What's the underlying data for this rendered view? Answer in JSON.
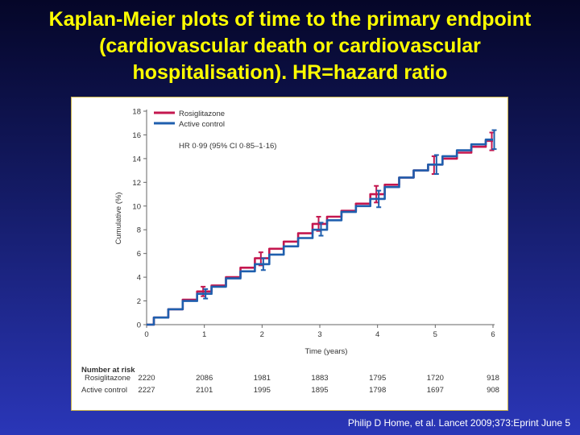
{
  "slide": {
    "title_lines": [
      "Kaplan-Meier plots of time to the primary endpoint",
      "(cardiovascular death or cardiovascular",
      "hospitalisation). HR=hazard ratio"
    ],
    "citation": "Philip D Home, et al. Lancet 2009;373:Eprint June 5"
  },
  "colors": {
    "rosiglitazone": "#c4174f",
    "active_control": "#1f5fae",
    "title": "#ffff00"
  },
  "chart_data": {
    "type": "line",
    "xlabel": "Time (years)",
    "ylabel": "Cumulative (%)",
    "xlim": [
      0,
      6
    ],
    "ylim": [
      0,
      18
    ],
    "x_ticks": [
      0,
      1,
      2,
      3,
      4,
      5,
      6
    ],
    "y_ticks": [
      0,
      2,
      4,
      6,
      8,
      10,
      12,
      14,
      16,
      18
    ],
    "annotation": "HR 0·99 (95% CI 0·85–1·16)",
    "legend_position": "top-left",
    "series": [
      {
        "name": "Rosiglitazone",
        "color": "#c4174f",
        "x": [
          0,
          0.25,
          0.5,
          0.75,
          1,
          1.25,
          1.5,
          1.75,
          2,
          2.25,
          2.5,
          2.75,
          3,
          3.25,
          3.5,
          3.75,
          4,
          4.25,
          4.5,
          4.75,
          5,
          5.25,
          5.5,
          5.75,
          6
        ],
        "y": [
          0,
          0.6,
          1.3,
          2.1,
          2.8,
          3.3,
          4.0,
          4.8,
          5.6,
          6.4,
          7.0,
          7.7,
          8.5,
          9.1,
          9.6,
          10.2,
          11.0,
          11.8,
          12.4,
          13.0,
          13.5,
          14.0,
          14.5,
          15.0,
          15.5
        ],
        "error_bars": [
          {
            "x": 1,
            "low": 2.4,
            "high": 3.2
          },
          {
            "x": 2,
            "low": 5.0,
            "high": 6.1
          },
          {
            "x": 3,
            "low": 7.9,
            "high": 9.1
          },
          {
            "x": 4,
            "low": 10.3,
            "high": 11.7
          },
          {
            "x": 5,
            "low": 12.7,
            "high": 14.2
          },
          {
            "x": 6,
            "low": 14.7,
            "high": 16.2
          }
        ]
      },
      {
        "name": "Active control",
        "color": "#1f5fae",
        "x": [
          0,
          0.25,
          0.5,
          0.75,
          1,
          1.25,
          1.5,
          1.75,
          2,
          2.25,
          2.5,
          2.75,
          3,
          3.25,
          3.5,
          3.75,
          4,
          4.25,
          4.5,
          4.75,
          5,
          5.25,
          5.5,
          5.75,
          6
        ],
        "y": [
          0,
          0.6,
          1.3,
          2.0,
          2.6,
          3.2,
          3.9,
          4.5,
          5.1,
          5.9,
          6.6,
          7.3,
          8.0,
          8.8,
          9.5,
          10.0,
          10.6,
          11.6,
          12.4,
          13.0,
          13.5,
          14.2,
          14.7,
          15.2,
          15.6
        ],
        "error_bars": [
          {
            "x": 1,
            "low": 2.2,
            "high": 3.0
          },
          {
            "x": 2,
            "low": 4.6,
            "high": 5.6
          },
          {
            "x": 3,
            "low": 7.5,
            "high": 8.6
          },
          {
            "x": 4,
            "low": 9.9,
            "high": 11.3
          },
          {
            "x": 5,
            "low": 12.7,
            "high": 14.3
          },
          {
            "x": 6,
            "low": 14.8,
            "high": 16.4
          }
        ]
      }
    ],
    "risk_table": {
      "heading": "Number at risk",
      "rows": [
        {
          "label": "Rosiglitazone",
          "values": [
            "2220",
            "2086",
            "1981",
            "1883",
            "1795",
            "1720",
            "918"
          ]
        },
        {
          "label": "Active control",
          "values": [
            "2227",
            "2101",
            "1995",
            "1895",
            "1798",
            "1697",
            "908"
          ]
        }
      ]
    }
  }
}
